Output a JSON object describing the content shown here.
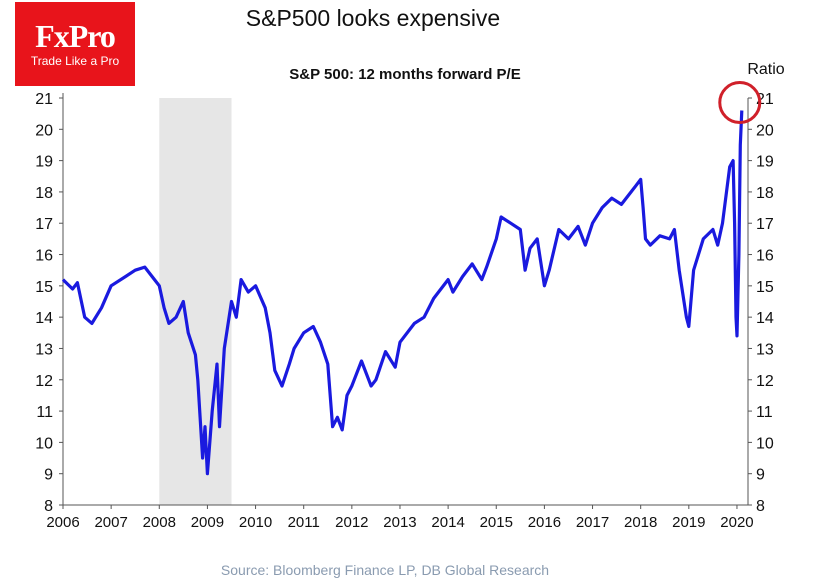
{
  "header": {
    "title": "S&P500 looks expensive",
    "source": "Source: Bloomberg Finance LP, DB Global Research"
  },
  "logo": {
    "brand": "FxPro",
    "tagline": "Trade Like a Pro",
    "color": "#e8141b"
  },
  "chart_data": {
    "type": "line",
    "title": "S&P 500: 12 months forward P/E",
    "ylabel": "Ratio",
    "xlabel": "",
    "xlim": [
      2006,
      2020.2
    ],
    "ylim": [
      8,
      21
    ],
    "x_ticks": [
      "2006",
      "2007",
      "2008",
      "2009",
      "2010",
      "2011",
      "2012",
      "2013",
      "2014",
      "2015",
      "2016",
      "2017",
      "2018",
      "2019",
      "2020"
    ],
    "y_ticks": [
      8,
      9,
      10,
      11,
      12,
      13,
      14,
      15,
      16,
      17,
      18,
      19,
      20,
      21
    ],
    "grid": false,
    "line_color": "#1a1adf",
    "shaded_region": {
      "from": 2008.0,
      "to": 2009.5,
      "color": "#e6e6e6"
    },
    "highlight_circle": {
      "x": 2020.1,
      "y": 20.6,
      "color": "#d0202a"
    },
    "series": [
      {
        "x": [
          2006.0,
          2006.2,
          2006.3,
          2006.45,
          2006.6,
          2006.8,
          2007.0,
          2007.3,
          2007.5,
          2007.7,
          2007.9,
          2008.0,
          2008.1,
          2008.2,
          2008.35,
          2008.5,
          2008.6,
          2008.75,
          2008.8,
          2008.9,
          2008.95,
          2009.0,
          2009.1,
          2009.2,
          2009.25,
          2009.35,
          2009.5,
          2009.6,
          2009.7,
          2009.85,
          2010.0,
          2010.2,
          2010.3,
          2010.4,
          2010.55,
          2010.7,
          2010.8,
          2011.0,
          2011.2,
          2011.35,
          2011.5,
          2011.6,
          2011.7,
          2011.8,
          2011.9,
          2012.0,
          2012.2,
          2012.4,
          2012.5,
          2012.7,
          2012.9,
          2013.0,
          2013.3,
          2013.5,
          2013.7,
          2014.0,
          2014.1,
          2014.3,
          2014.5,
          2014.7,
          2014.8,
          2015.0,
          2015.1,
          2015.3,
          2015.5,
          2015.6,
          2015.7,
          2015.85,
          2016.0,
          2016.1,
          2016.3,
          2016.5,
          2016.7,
          2016.85,
          2017.0,
          2017.2,
          2017.4,
          2017.6,
          2017.8,
          2017.9,
          2018.0,
          2018.05,
          2018.1,
          2018.2,
          2018.4,
          2018.6,
          2018.7,
          2018.8,
          2018.95,
          2019.0,
          2019.1,
          2019.3,
          2019.5,
          2019.6,
          2019.7,
          2019.85,
          2019.92,
          2019.95,
          2019.98,
          2020.0,
          2020.04,
          2020.07,
          2020.1
        ],
        "y": [
          15.2,
          14.9,
          15.1,
          14.0,
          13.8,
          14.3,
          15.0,
          15.3,
          15.5,
          15.6,
          15.2,
          15.0,
          14.3,
          13.8,
          14.0,
          14.5,
          13.5,
          12.8,
          12.0,
          9.5,
          10.5,
          9.0,
          11.0,
          12.5,
          10.5,
          13.0,
          14.5,
          14.0,
          15.2,
          14.8,
          15.0,
          14.3,
          13.5,
          12.3,
          11.8,
          12.5,
          13.0,
          13.5,
          13.7,
          13.2,
          12.5,
          10.5,
          10.8,
          10.4,
          11.5,
          11.8,
          12.6,
          11.8,
          12.0,
          12.9,
          12.4,
          13.2,
          13.8,
          14.0,
          14.6,
          15.2,
          14.8,
          15.3,
          15.7,
          15.2,
          15.6,
          16.5,
          17.2,
          17.0,
          16.8,
          15.5,
          16.2,
          16.5,
          15.0,
          15.5,
          16.8,
          16.5,
          16.9,
          16.3,
          17.0,
          17.5,
          17.8,
          17.6,
          18.0,
          18.2,
          18.4,
          17.5,
          16.5,
          16.3,
          16.6,
          16.5,
          16.8,
          15.5,
          14.0,
          13.7,
          15.5,
          16.5,
          16.8,
          16.3,
          17.0,
          18.8,
          19.0,
          17.0,
          14.0,
          13.4,
          16.0,
          19.5,
          20.6
        ]
      }
    ]
  }
}
